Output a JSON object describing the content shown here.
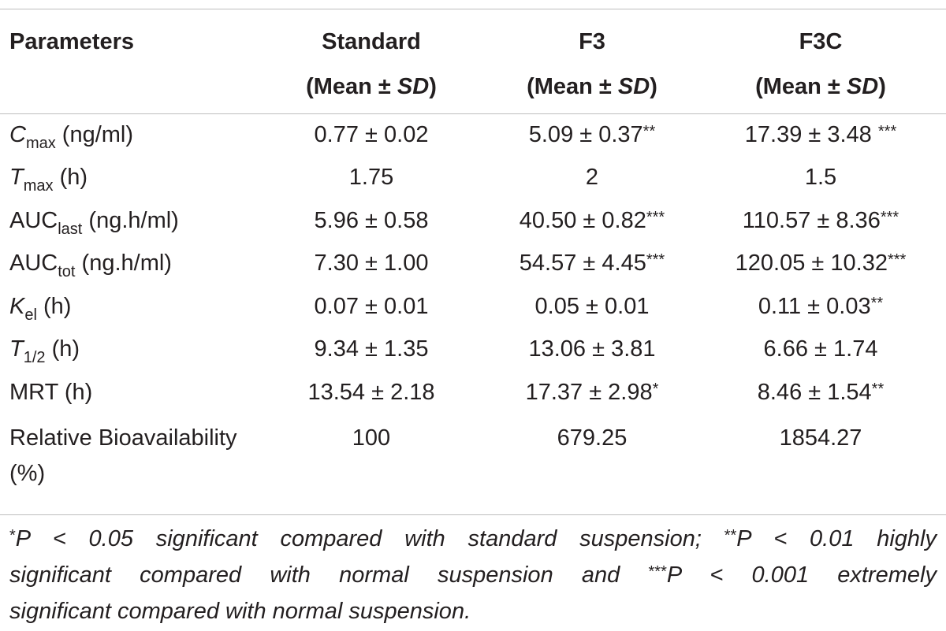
{
  "table": {
    "headers": [
      {
        "line1": "Parameters",
        "line2": ""
      },
      {
        "line1": "Standard",
        "line2_pre": "(Mean ± ",
        "line2_sd": "SD",
        "line2_post": ")"
      },
      {
        "line1": "F3",
        "line2_pre": "(Mean ± ",
        "line2_sd": "SD",
        "line2_post": ")"
      },
      {
        "line1": "F3C",
        "line2_pre": "(Mean ± ",
        "line2_sd": "SD",
        "line2_post": ")"
      }
    ],
    "rows": [
      {
        "sym": "C",
        "sub": "max",
        "unit": " (ng/ml)",
        "v1": "0.77 ± 0.02",
        "s1": "",
        "v2": "5.09 ± 0.37",
        "s2": "**",
        "v3": "17.39 ± 3.48 ",
        "s3": "***"
      },
      {
        "sym": "T",
        "sub": "max",
        "unit": " (h)",
        "v1": "1.75",
        "s1": "",
        "v2": "2",
        "s2": "",
        "v3": "1.5",
        "s3": ""
      },
      {
        "sym": "AUC",
        "sub": "last",
        "unit": " (ng.h/ml)",
        "v1": "5.96 ± 0.58",
        "s1": "",
        "v2": "40.50 ± 0.82",
        "s2": "***",
        "v3": "110.57 ± 8.36",
        "s3": "***"
      },
      {
        "sym": "AUC",
        "sub": "tot",
        "unit": " (ng.h/ml)",
        "v1": "7.30 ± 1.00",
        "s1": "",
        "v2": "54.57 ± 4.45",
        "s2": "***",
        "v3": "120.05 ± 10.32",
        "s3": "***"
      },
      {
        "sym": "K",
        "sub": "el",
        "unit": " (h)",
        "v1": "0.07 ± 0.01",
        "s1": "",
        "v2": "0.05 ± 0.01",
        "s2": "",
        "v3": "0.11 ± 0.03",
        "s3": "**"
      },
      {
        "sym": "T",
        "sub": "1/2",
        "unit": " (h)",
        "v1": "9.34 ± 1.35",
        "s1": "",
        "v2": "13.06 ± 3.81",
        "s2": "",
        "v3": "6.66 ± 1.74",
        "s3": ""
      },
      {
        "sym": "MRT",
        "sub": "",
        "unit": " (h)",
        "v1": "13.54 ± 2.18",
        "s1": "",
        "v2": "17.37 ± 2.98",
        "s2": "*",
        "v3": "8.46 ± 1.54",
        "s3": "**"
      },
      {
        "sym": "Relative Bioavailability (%)",
        "sub": "",
        "unit": "",
        "v1": "100",
        "s1": "",
        "v2": "679.25",
        "s2": "",
        "v3": "1854.27",
        "s3": ""
      }
    ]
  },
  "footnote": {
    "line1": {
      "a_star": "*",
      "a_text": "P < 0.05 significant compared with standard suspension; ",
      "b_star": "**",
      "b_text": "P < 0.01 highly"
    },
    "line2": {
      "a_text": "significant compared with normal suspension and ",
      "b_star": "***",
      "b_text": "P < 0.001 extremely"
    },
    "line3": {
      "a_text": "significant compared with normal suspension."
    }
  }
}
